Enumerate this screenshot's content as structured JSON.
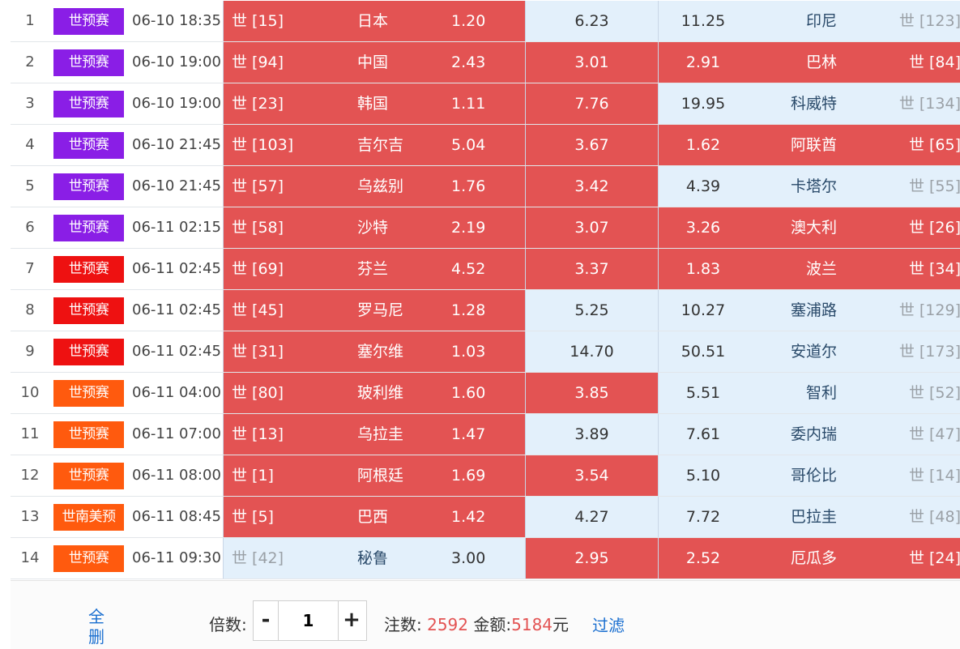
{
  "colors": {
    "selected": "#e35353",
    "unselected": "#e3f0fb",
    "league_purple": "#8a1ee6",
    "league_red": "#ee1111",
    "league_orange": "#ff5a0e",
    "link_blue": "#1a6fd0"
  },
  "matches": [
    {
      "idx": "1",
      "league": "世预赛",
      "league_color": "#8a1ee6",
      "time": "06-10 18:35",
      "home_rank": "世 [15]",
      "home": "日本",
      "home_odds": "1.20",
      "draw_odds": "6.23",
      "away_odds": "11.25",
      "away": "印尼",
      "away_rank": "世 [123]",
      "sel_home": true,
      "sel_draw": false,
      "sel_away": false
    },
    {
      "idx": "2",
      "league": "世预赛",
      "league_color": "#8a1ee6",
      "time": "06-10 19:00",
      "home_rank": "世 [94]",
      "home": "中国",
      "home_odds": "2.43",
      "draw_odds": "3.01",
      "away_odds": "2.91",
      "away": "巴林",
      "away_rank": "世 [84]",
      "sel_home": true,
      "sel_draw": true,
      "sel_away": true
    },
    {
      "idx": "3",
      "league": "世预赛",
      "league_color": "#8a1ee6",
      "time": "06-10 19:00",
      "home_rank": "世 [23]",
      "home": "韩国",
      "home_odds": "1.11",
      "draw_odds": "7.76",
      "away_odds": "19.95",
      "away": "科威特",
      "away_rank": "世 [134]",
      "sel_home": true,
      "sel_draw": true,
      "sel_away": false
    },
    {
      "idx": "4",
      "league": "世预赛",
      "league_color": "#8a1ee6",
      "time": "06-10 21:45",
      "home_rank": "世 [103]",
      "home": "吉尔吉",
      "home_odds": "5.04",
      "draw_odds": "3.67",
      "away_odds": "1.62",
      "away": "阿联酋",
      "away_rank": "世 [65]",
      "sel_home": true,
      "sel_draw": true,
      "sel_away": true
    },
    {
      "idx": "5",
      "league": "世预赛",
      "league_color": "#8a1ee6",
      "time": "06-10 21:45",
      "home_rank": "世 [57]",
      "home": "乌兹别",
      "home_odds": "1.76",
      "draw_odds": "3.42",
      "away_odds": "4.39",
      "away": "卡塔尔",
      "away_rank": "世 [55]",
      "sel_home": true,
      "sel_draw": true,
      "sel_away": false
    },
    {
      "idx": "6",
      "league": "世预赛",
      "league_color": "#8a1ee6",
      "time": "06-11 02:15",
      "home_rank": "世 [58]",
      "home": "沙特",
      "home_odds": "2.19",
      "draw_odds": "3.07",
      "away_odds": "3.26",
      "away": "澳大利",
      "away_rank": "世 [26]",
      "sel_home": true,
      "sel_draw": true,
      "sel_away": true
    },
    {
      "idx": "7",
      "league": "世预赛",
      "league_color": "#ee1111",
      "time": "06-11 02:45",
      "home_rank": "世 [69]",
      "home": "芬兰",
      "home_odds": "4.52",
      "draw_odds": "3.37",
      "away_odds": "1.83",
      "away": "波兰",
      "away_rank": "世 [34]",
      "sel_home": true,
      "sel_draw": true,
      "sel_away": true
    },
    {
      "idx": "8",
      "league": "世预赛",
      "league_color": "#ee1111",
      "time": "06-11 02:45",
      "home_rank": "世 [45]",
      "home": "罗马尼",
      "home_odds": "1.28",
      "draw_odds": "5.25",
      "away_odds": "10.27",
      "away": "塞浦路",
      "away_rank": "世 [129]",
      "sel_home": true,
      "sel_draw": false,
      "sel_away": false
    },
    {
      "idx": "9",
      "league": "世预赛",
      "league_color": "#ee1111",
      "time": "06-11 02:45",
      "home_rank": "世 [31]",
      "home": "塞尔维",
      "home_odds": "1.03",
      "draw_odds": "14.70",
      "away_odds": "50.51",
      "away": "安道尔",
      "away_rank": "世 [173]",
      "sel_home": true,
      "sel_draw": false,
      "sel_away": false
    },
    {
      "idx": "10",
      "league": "世预赛",
      "league_color": "#ff5a0e",
      "time": "06-11 04:00",
      "home_rank": "世 [80]",
      "home": "玻利维",
      "home_odds": "1.60",
      "draw_odds": "3.85",
      "away_odds": "5.51",
      "away": "智利",
      "away_rank": "世 [52]",
      "sel_home": true,
      "sel_draw": true,
      "sel_away": false
    },
    {
      "idx": "11",
      "league": "世预赛",
      "league_color": "#ff5a0e",
      "time": "06-11 07:00",
      "home_rank": "世 [13]",
      "home": "乌拉圭",
      "home_odds": "1.47",
      "draw_odds": "3.89",
      "away_odds": "7.61",
      "away": "委内瑞",
      "away_rank": "世 [47]",
      "sel_home": true,
      "sel_draw": false,
      "sel_away": false
    },
    {
      "idx": "12",
      "league": "世预赛",
      "league_color": "#ff5a0e",
      "time": "06-11 08:00",
      "home_rank": "世 [1]",
      "home": "阿根廷",
      "home_odds": "1.69",
      "draw_odds": "3.54",
      "away_odds": "5.10",
      "away": "哥伦比",
      "away_rank": "世 [14]",
      "sel_home": true,
      "sel_draw": true,
      "sel_away": false
    },
    {
      "idx": "13",
      "league": "世南美预",
      "league_color": "#ff5a0e",
      "time": "06-11 08:45",
      "home_rank": "世 [5]",
      "home": "巴西",
      "home_odds": "1.42",
      "draw_odds": "4.27",
      "away_odds": "7.72",
      "away": "巴拉圭",
      "away_rank": "世 [48]",
      "sel_home": true,
      "sel_draw": false,
      "sel_away": false
    },
    {
      "idx": "14",
      "league": "世预赛",
      "league_color": "#ff5a0e",
      "time": "06-11 09:30",
      "home_rank": "世 [42]",
      "home": "秘鲁",
      "home_odds": "3.00",
      "draw_odds": "2.95",
      "away_odds": "2.52",
      "away": "厄瓜多",
      "away_rank": "世 [24]",
      "sel_home": false,
      "sel_draw": true,
      "sel_away": true
    }
  ],
  "footer": {
    "delete_all": "全删",
    "multiplier_label": "倍数:",
    "minus": "-",
    "multiplier_value": "1",
    "plus": "+",
    "bets_label": "注数:",
    "bets_value": "2592",
    "amount_label": "金额:",
    "amount_value": "5184",
    "amount_unit": "元",
    "filter": "过滤"
  }
}
